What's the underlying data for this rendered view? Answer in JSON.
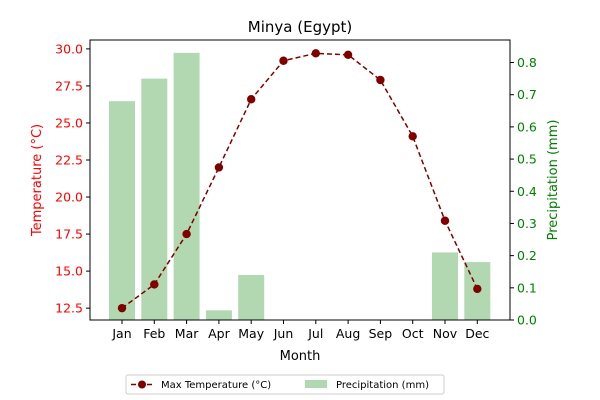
{
  "chart_data": {
    "type": "bar+line",
    "title": "Minya (Egypt)",
    "xlabel": "Month",
    "ylabel_left": "Temperature (°C)",
    "ylabel_right": "Precipitation (mm)",
    "categories": [
      "Jan",
      "Feb",
      "Mar",
      "Apr",
      "May",
      "Jun",
      "Jul",
      "Aug",
      "Sep",
      "Oct",
      "Nov",
      "Dec"
    ],
    "series": [
      {
        "name": "Max Temperature (°C)",
        "type": "line",
        "axis": "left",
        "color": "#800000",
        "line_style": "dashed",
        "marker": "circle",
        "values": [
          12.5,
          14.1,
          17.5,
          22.0,
          26.6,
          29.2,
          29.7,
          29.6,
          27.9,
          24.1,
          18.4,
          13.8
        ]
      },
      {
        "name": "Precipitation (mm)",
        "type": "bar",
        "axis": "right",
        "color": "#b2d8b2",
        "values": [
          0.68,
          0.75,
          0.83,
          0.03,
          0.14,
          0.0,
          0.0,
          0.0,
          0.0,
          0.0,
          0.21,
          0.18
        ]
      }
    ],
    "y_left": {
      "range": [
        11.7,
        30.6
      ],
      "ticks": [
        "12.5",
        "15.0",
        "17.5",
        "20.0",
        "22.5",
        "25.0",
        "27.5",
        "30.0"
      ],
      "color": "#ff0000"
    },
    "y_right": {
      "range": [
        0.0,
        0.87
      ],
      "ticks": [
        "0.0",
        "0.1",
        "0.2",
        "0.3",
        "0.4",
        "0.5",
        "0.6",
        "0.7",
        "0.8"
      ],
      "color": "#008000"
    },
    "grid": false,
    "legend": {
      "placement": "bottom-center",
      "entries": [
        "Max Temperature (°C)",
        "Precipitation (mm)"
      ]
    }
  }
}
